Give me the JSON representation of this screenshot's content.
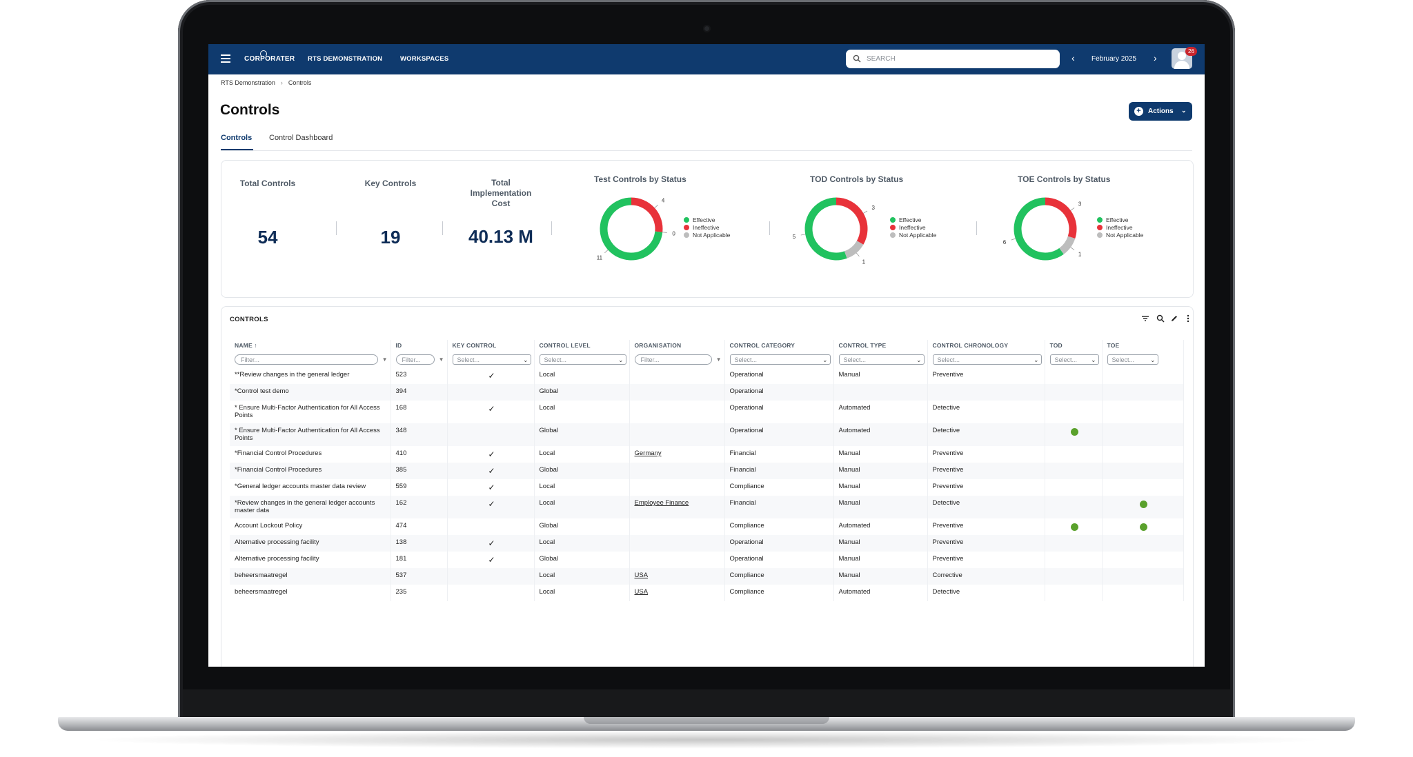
{
  "app": {
    "logo_text": "CORPORATER",
    "nav": [
      "RTS DEMONSTRATION",
      "WORKSPACES"
    ],
    "search_placeholder": "SEARCH",
    "period": "February 2025",
    "notification_count": "26"
  },
  "breadcrumb": [
    "RTS Demonstration",
    "Controls"
  ],
  "page": {
    "title": "Controls",
    "actions_label": "Actions",
    "tabs": [
      "Controls",
      "Control Dashboard"
    ]
  },
  "kpis": [
    {
      "label": "Total Controls",
      "value": "54"
    },
    {
      "label": "Key Controls",
      "value": "19"
    },
    {
      "label": "Total Implementation Cost",
      "value": "40.13 M"
    }
  ],
  "chart_data": [
    {
      "type": "pie",
      "title": "Test Controls by Status",
      "categories": [
        "Effective",
        "Ineffective",
        "Not Applicable"
      ],
      "values": [
        11,
        4,
        0
      ],
      "colors": [
        "#21c25f",
        "#e8323a",
        "#bdbdbd"
      ]
    },
    {
      "type": "pie",
      "title": "TOD Controls by Status",
      "categories": [
        "Effective",
        "Ineffective",
        "Not Applicable"
      ],
      "values": [
        5,
        3,
        1
      ],
      "colors": [
        "#21c25f",
        "#e8323a",
        "#bdbdbd"
      ]
    },
    {
      "type": "pie",
      "title": "TOE Controls by Status",
      "categories": [
        "Effective",
        "Ineffective",
        "Not Applicable"
      ],
      "values": [
        6,
        3,
        1
      ],
      "colors": [
        "#21c25f",
        "#e8323a",
        "#bdbdbd"
      ]
    }
  ],
  "table": {
    "title": "CONTROLS",
    "columns": [
      "NAME ↑",
      "ID",
      "KEY CONTROL",
      "CONTROL LEVEL",
      "ORGANISATION",
      "CONTROL CATEGORY",
      "CONTROL TYPE",
      "CONTROL CHRONOLOGY",
      "TOD",
      "TOE"
    ],
    "filter_placeholder": "Filter...",
    "select_placeholder": "Select...",
    "rows": [
      {
        "name": "**Review changes in the general ledger",
        "id": "523",
        "key": true,
        "level": "Local",
        "org": "",
        "category": "Operational",
        "type": "Manual",
        "chrono": "Preventive",
        "tod": false,
        "toe": false
      },
      {
        "name": "*Control test demo",
        "id": "394",
        "key": false,
        "level": "Global",
        "org": "",
        "category": "Operational",
        "type": "",
        "chrono": "",
        "tod": false,
        "toe": false
      },
      {
        "name": "* Ensure Multi-Factor Authentication for All Access Points",
        "id": "168",
        "key": true,
        "level": "Local",
        "org": "",
        "category": "Operational",
        "type": "Automated",
        "chrono": "Detective",
        "tod": false,
        "toe": false
      },
      {
        "name": "* Ensure Multi-Factor Authentication for All Access Points",
        "id": "348",
        "key": false,
        "level": "Global",
        "org": "",
        "category": "Operational",
        "type": "Automated",
        "chrono": "Detective",
        "tod": true,
        "toe": false
      },
      {
        "name": "*Financial Control Procedures",
        "id": "410",
        "key": true,
        "level": "Local",
        "org": "Germany",
        "category": "Financial",
        "type": "Manual",
        "chrono": "Preventive",
        "tod": false,
        "toe": false
      },
      {
        "name": "*Financial Control Procedures",
        "id": "385",
        "key": true,
        "level": "Global",
        "org": "",
        "category": "Financial",
        "type": "Manual",
        "chrono": "Preventive",
        "tod": false,
        "toe": false
      },
      {
        "name": "*General ledger accounts master data review",
        "id": "559",
        "key": true,
        "level": "Local",
        "org": "",
        "category": "Compliance",
        "type": "Manual",
        "chrono": "Preventive",
        "tod": false,
        "toe": false
      },
      {
        "name": "*Review changes in the general ledger accounts master data",
        "id": "162",
        "key": true,
        "level": "Local",
        "org": "Employee Finance",
        "category": "Financial",
        "type": "Manual",
        "chrono": "Detective",
        "tod": false,
        "toe": true
      },
      {
        "name": "Account Lockout Policy",
        "id": "474",
        "key": false,
        "level": "Global",
        "org": "",
        "category": "Compliance",
        "type": "Automated",
        "chrono": "Preventive",
        "tod": true,
        "toe": true
      },
      {
        "name": "Alternative processing facility",
        "id": "138",
        "key": true,
        "level": "Local",
        "org": "",
        "category": "Operational",
        "type": "Manual",
        "chrono": "Preventive",
        "tod": false,
        "toe": false
      },
      {
        "name": "Alternative processing facility",
        "id": "181",
        "key": true,
        "level": "Global",
        "org": "",
        "category": "Operational",
        "type": "Manual",
        "chrono": "Preventive",
        "tod": false,
        "toe": false
      },
      {
        "name": "beheersmaatregel",
        "id": "537",
        "key": false,
        "level": "Local",
        "org": "USA",
        "category": "Compliance",
        "type": "Manual",
        "chrono": "Corrective",
        "tod": false,
        "toe": false
      },
      {
        "name": "beheersmaatregel",
        "id": "235",
        "key": false,
        "level": "Local",
        "org": "USA",
        "category": "Compliance",
        "type": "Automated",
        "chrono": "Detective",
        "tod": false,
        "toe": false
      }
    ]
  },
  "icons": [
    "menu-icon",
    "search-icon",
    "chevron-left-icon",
    "chevron-right-icon",
    "plus-circle-icon",
    "filter-icon",
    "edit-icon",
    "more-vertical-icon",
    "check-icon",
    "status-dot-icon"
  ]
}
